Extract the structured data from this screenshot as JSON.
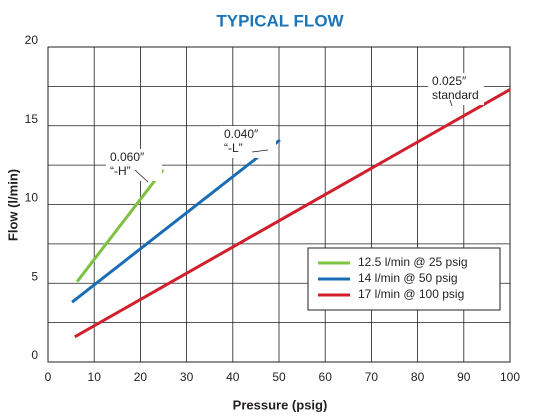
{
  "chart_data": {
    "type": "line",
    "title": "TYPICAL FLOW",
    "x_label": "Pressure (psig)",
    "y_label": "Flow (l/min)",
    "xlim": [
      0,
      100
    ],
    "xticks": [
      0,
      10,
      20,
      30,
      40,
      50,
      60,
      70,
      80,
      90,
      100
    ],
    "ylim": [
      0,
      20
    ],
    "yticks": [
      0,
      5,
      10,
      15,
      20
    ],
    "y_minor_grid": [
      2.5,
      7.5,
      12.5,
      17.5
    ],
    "grid": true,
    "legend": "lower right",
    "series": [
      {
        "name": "12.5 l/min @ 25 psig",
        "color": "#7dc242",
        "x": [
          6.3,
          24.9
        ],
        "values": [
          5.1,
          12.2
        ]
      },
      {
        "name": "14 l/min @ 50 psig",
        "color": "#1a6db5",
        "x": [
          5.2,
          50.2
        ],
        "values": [
          3.8,
          14.1
        ]
      },
      {
        "name": "17 l/min @ 100 psig",
        "color": "#d0202e",
        "x": [
          5.8,
          100
        ],
        "values": [
          1.6,
          17.3
        ]
      }
    ],
    "annotations": [
      {
        "lines": [
          "0.060″",
          "“-H”"
        ]
      },
      {
        "lines": [
          "0.040″",
          "“-L”"
        ]
      },
      {
        "lines": [
          "0.025″",
          "standard"
        ]
      }
    ]
  }
}
